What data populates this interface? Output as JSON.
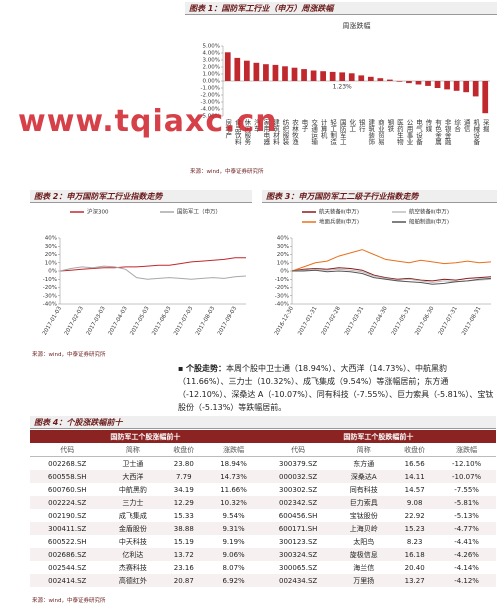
{
  "watermark": "www.tqiaxc.cn",
  "chart_data": [
    {
      "type": "bar",
      "title": "图表 1：国防军工行业（申万）周涨跌幅",
      "subtitle": "周涨跌幅",
      "color": "#c0282d",
      "categories": [
        "房地产",
        "食品饮料",
        "休闲服务",
        "汽车",
        "家用电器",
        "建筑材料",
        "纺织服装",
        "农林牧渔",
        "电子",
        "交通运输",
        "计算机",
        "轻工制造",
        "国防军工",
        "化工",
        "银行",
        "建筑装饰",
        "商业贸易",
        "钢铁",
        "医药生物",
        "公用事业",
        "电气设备",
        "传媒",
        "有色金属",
        "非银金融",
        "综合",
        "通信",
        "机械设备",
        "采掘"
      ],
      "values": [
        4.1,
        3.3,
        2.9,
        2.6,
        2.4,
        2.3,
        2.1,
        1.9,
        1.7,
        1.5,
        1.4,
        1.3,
        1.23,
        1.1,
        0.8,
        0.6,
        0.4,
        0.2,
        -0.1,
        -0.3,
        -0.5,
        -0.7,
        -1.0,
        -1.2,
        -1.4,
        -1.6,
        -2.2,
        -4.6
      ],
      "annotations": [
        {
          "text": "1.23%"
        }
      ],
      "ylim": [
        -5,
        5
      ],
      "yticks": [
        {
          "value": 5,
          "label": "5.00%"
        },
        {
          "value": 4,
          "label": "4.00%"
        },
        {
          "value": 3,
          "label": "3.00%"
        },
        {
          "value": 2,
          "label": "2.00%"
        },
        {
          "value": 1,
          "label": "1.00%"
        },
        {
          "value": 0,
          "label": "0.00%"
        },
        {
          "value": -1,
          "label": "-1.00%"
        },
        {
          "value": -2,
          "label": "-2.00%"
        },
        {
          "value": -3,
          "label": "-3.00%"
        },
        {
          "value": -4,
          "label": "-4.00%"
        },
        {
          "value": -5,
          "label": "-5.00%"
        }
      ],
      "source": "来源：wind，中泰证券研究所"
    },
    {
      "type": "line",
      "title": "图表 2：申万国防军工行业指数走势",
      "categories": [
        "2017-01-03",
        null,
        "2017-02-03",
        null,
        "2017-03-03",
        null,
        "2017-04-03",
        null,
        "2017-05-03",
        null,
        "2017-06-03",
        null,
        "2017-07-03",
        null,
        "2017-08-03",
        null,
        "2017-09-03",
        null
      ],
      "series": [
        {
          "name": "沪深300",
          "color": "#c0282d",
          "values": [
            0,
            1,
            2,
            3,
            4,
            4,
            5,
            5,
            6,
            7,
            7,
            9,
            11,
            12,
            13,
            14,
            16,
            16
          ]
        },
        {
          "name": "国防军工（申万）",
          "color": "#a8a8a8",
          "values": [
            0,
            3,
            5,
            4,
            6,
            5,
            2,
            -8,
            -10,
            -9,
            -8,
            -9,
            -10,
            -9,
            -8,
            -9,
            -7,
            -6
          ]
        }
      ],
      "ylim": [
        -40,
        40
      ],
      "yticks": [
        {
          "value": 40,
          "label": "40%"
        },
        {
          "value": 30,
          "label": "30%"
        },
        {
          "value": 20,
          "label": "20%"
        },
        {
          "value": 10,
          "label": "10%"
        },
        {
          "value": 0,
          "label": "0%"
        },
        {
          "value": -10,
          "label": "-10%"
        },
        {
          "value": -20,
          "label": "-20%"
        },
        {
          "value": -30,
          "label": "-30%"
        },
        {
          "value": -40,
          "label": "-40%"
        }
      ],
      "source": "来源：wind，中泰证券研究所"
    },
    {
      "type": "line",
      "title": "图表 3：申万国防军工二级子行业指数走势",
      "categories": [
        "2016-12-30",
        null,
        "2017-01-31",
        null,
        "2017-02-28",
        null,
        "2017-03-31",
        null,
        "2017-04-30",
        null,
        "2017-05-31",
        null,
        "2017-06-30",
        null,
        "2017-07-31",
        null,
        "2017-08-31",
        null
      ],
      "series": [
        {
          "name": "航天装备Ⅱ(申万)",
          "color": "#8b1a1a",
          "values": [
            0,
            2,
            3,
            2,
            4,
            3,
            1,
            -5,
            -8,
            -10,
            -9,
            -11,
            -12,
            -10,
            -11,
            -9,
            -8,
            -7
          ]
        },
        {
          "name": "航空装备Ⅱ(申万)",
          "color": "#bdbdbd",
          "values": [
            0,
            1,
            2,
            1,
            2,
            1,
            -1,
            -6,
            -9,
            -11,
            -10,
            -12,
            -14,
            -12,
            -13,
            -12,
            -11,
            -10
          ]
        },
        {
          "name": "地面兵装Ⅱ(申万)",
          "color": "#e8701a",
          "values": [
            0,
            5,
            10,
            12,
            18,
            22,
            26,
            20,
            14,
            12,
            10,
            13,
            11,
            9,
            10,
            12,
            10,
            11
          ]
        },
        {
          "name": "船舶制造Ⅱ(申万)",
          "color": "#555555",
          "values": [
            0,
            0,
            1,
            -1,
            0,
            -1,
            -3,
            -8,
            -10,
            -12,
            -13,
            -14,
            -16,
            -15,
            -13,
            -12,
            -10,
            -9
          ]
        }
      ],
      "ylim": [
        -40,
        40
      ],
      "yticks": [
        {
          "value": 40,
          "label": "40%"
        },
        {
          "value": 30,
          "label": "30%"
        },
        {
          "value": 20,
          "label": "20%"
        },
        {
          "value": 10,
          "label": "10%"
        },
        {
          "value": 0,
          "label": "0%"
        },
        {
          "value": -10,
          "label": "-10%"
        },
        {
          "value": -20,
          "label": "-20%"
        },
        {
          "value": -30,
          "label": "-30%"
        },
        {
          "value": -40,
          "label": "-40%"
        }
      ]
    }
  ],
  "paragraph": {
    "lead": "个股走势：",
    "text": "本周个股中卫士通（18.94%）、大西洋（14.73%）、中航黑豹（11.66%）、三力士（10.32%）、成飞集成（9.54%）等涨幅居前；东方通（-12.10%）、深桑达 A（-10.07%）、同有科技（-7.55%）、巨力索具（-5.81%）、宝钛股份（-5.13%）等跌幅居前。"
  },
  "table": {
    "title": "图表 4：个股涨跌幅前十",
    "groups": [
      "国防军工个股涨幅前十",
      "国防军工个股跌幅前十"
    ],
    "columns": [
      "代码",
      "简称",
      "收盘价",
      "涨跌幅",
      "代码",
      "简称",
      "收盘价",
      "涨跌幅"
    ],
    "rows": [
      [
        "002268.SZ",
        "卫士通",
        "23.80",
        "18.94%",
        "300379.SZ",
        "东方通",
        "16.56",
        "-12.10%"
      ],
      [
        "600558.SH",
        "大西洋",
        "7.79",
        "14.73%",
        "000032.SZ",
        "深桑达A",
        "14.11",
        "-10.07%"
      ],
      [
        "600760.SH",
        "中航黑豹",
        "34.19",
        "11.66%",
        "300302.SZ",
        "同有科技",
        "14.57",
        "-7.55%"
      ],
      [
        "002224.SZ",
        "三力士",
        "12.29",
        "10.32%",
        "002342.SZ",
        "巨力索具",
        "9.08",
        "-5.81%"
      ],
      [
        "002190.SZ",
        "成飞集成",
        "15.33",
        "9.54%",
        "600456.SH",
        "宝钛股份",
        "22.92",
        "-5.13%"
      ],
      [
        "300411.SZ",
        "金盾股份",
        "38.88",
        "9.31%",
        "600171.SH",
        "上海贝岭",
        "15.23",
        "-4.77%"
      ],
      [
        "600522.SH",
        "中天科技",
        "15.19",
        "9.19%",
        "300123.SZ",
        "太阳鸟",
        "8.23",
        "-4.41%"
      ],
      [
        "002686.SZ",
        "亿利达",
        "13.72",
        "9.06%",
        "300324.SZ",
        "旋极信息",
        "16.18",
        "-4.26%"
      ],
      [
        "002544.SZ",
        "杰赛科技",
        "23.16",
        "8.07%",
        "300065.SZ",
        "海兰信",
        "20.40",
        "-4.14%"
      ],
      [
        "002414.SZ",
        "高德红外",
        "20.87",
        "6.92%",
        "002434.SZ",
        "万里扬",
        "13.27",
        "-4.12%"
      ]
    ],
    "source": "来源：wind，中泰证券研究所"
  }
}
